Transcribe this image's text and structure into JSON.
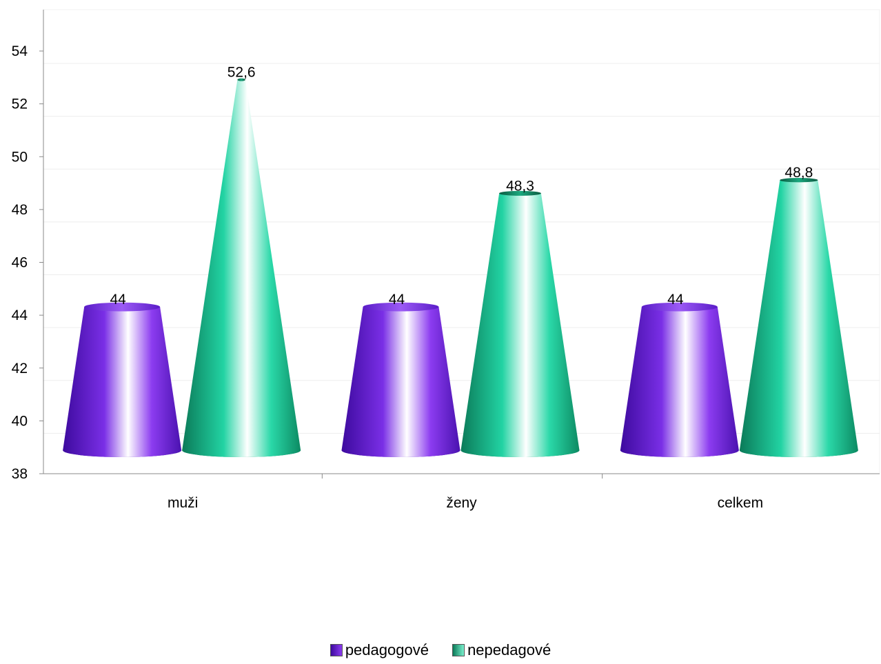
{
  "chart_data": {
    "type": "bar",
    "shape": "cone",
    "categories": [
      "muži",
      "ženy",
      "celkem"
    ],
    "series": [
      {
        "name": "pedagogové",
        "values": [
          44,
          44,
          44
        ],
        "labels": [
          "44",
          "44",
          "44"
        ],
        "color": "#6a1fd6"
      },
      {
        "name": "nepedagové",
        "values": [
          52.6,
          48.3,
          48.8
        ],
        "labels": [
          "52,6",
          "48,3",
          "48,8"
        ],
        "color": "#1fc79a"
      }
    ],
    "ylim": [
      38,
      54
    ],
    "yticks": [
      "38",
      "40",
      "42",
      "44",
      "46",
      "48",
      "50",
      "52",
      "54"
    ],
    "grid": true,
    "legend_position": "bottom",
    "title": "",
    "xlabel": "",
    "ylabel": ""
  }
}
